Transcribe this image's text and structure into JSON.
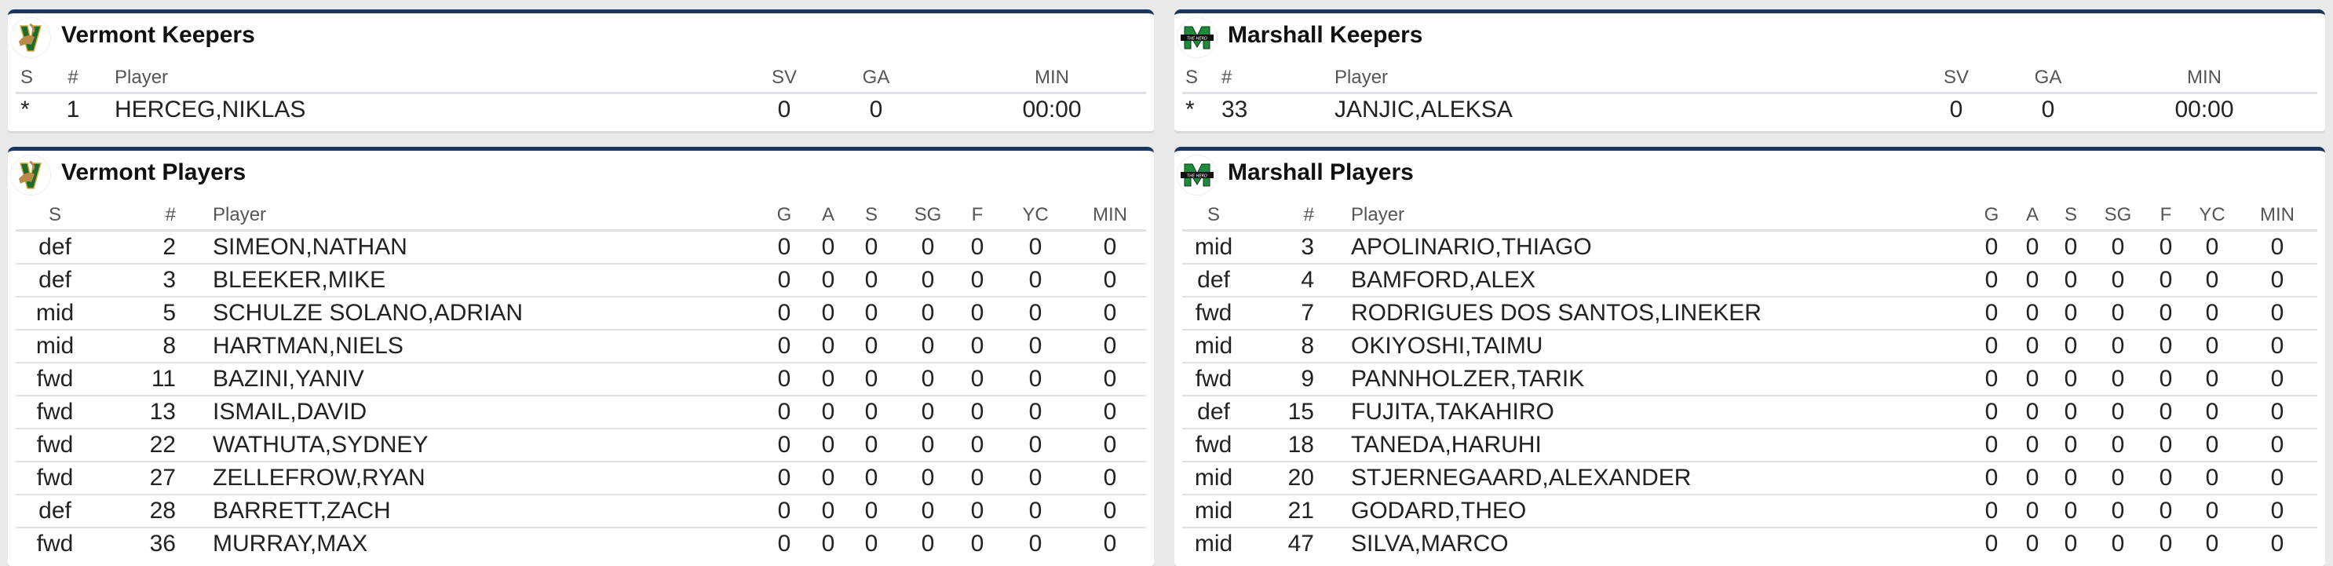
{
  "colors": {
    "header_bar": "#1b365d",
    "vermont_green": "#1f6b2d",
    "vermont_gold": "#d4a93a",
    "marshall_green": "#1e8a3c"
  },
  "panels": [
    {
      "id": "vermont-keepers",
      "title": "Vermont Keepers",
      "logo": "vermont-catamount-logo-icon",
      "columns": [
        "S",
        "#",
        "Player",
        "SV",
        "GA",
        "MIN"
      ],
      "rows": [
        [
          "*",
          "1",
          "HERCEG,NIKLAS",
          "0",
          "0",
          "00:00"
        ]
      ]
    },
    {
      "id": "marshall-keepers",
      "title": "Marshall Keepers",
      "logo": "marshall-herd-logo-icon",
      "columns": [
        "S",
        "#",
        "Player",
        "SV",
        "GA",
        "MIN"
      ],
      "rows": [
        [
          "*",
          "33",
          "JANJIC,ALEKSA",
          "0",
          "0",
          "00:00"
        ]
      ]
    },
    {
      "id": "vermont-players",
      "title": "Vermont Players",
      "logo": "vermont-catamount-logo-icon",
      "columns": [
        "S",
        "#",
        "Player",
        "G",
        "A",
        "S",
        "SG",
        "F",
        "YC",
        "MIN"
      ],
      "rows": [
        [
          "def",
          "2",
          "SIMEON,NATHAN",
          "0",
          "0",
          "0",
          "0",
          "0",
          "0",
          "0"
        ],
        [
          "def",
          "3",
          "BLEEKER,MIKE",
          "0",
          "0",
          "0",
          "0",
          "0",
          "0",
          "0"
        ],
        [
          "mid",
          "5",
          "SCHULZE SOLANO,ADRIAN",
          "0",
          "0",
          "0",
          "0",
          "0",
          "0",
          "0"
        ],
        [
          "mid",
          "8",
          "HARTMAN,NIELS",
          "0",
          "0",
          "0",
          "0",
          "0",
          "0",
          "0"
        ],
        [
          "fwd",
          "11",
          "BAZINI,YANIV",
          "0",
          "0",
          "0",
          "0",
          "0",
          "0",
          "0"
        ],
        [
          "fwd",
          "13",
          "ISMAIL,DAVID",
          "0",
          "0",
          "0",
          "0",
          "0",
          "0",
          "0"
        ],
        [
          "fwd",
          "22",
          "WATHUTA,SYDNEY",
          "0",
          "0",
          "0",
          "0",
          "0",
          "0",
          "0"
        ],
        [
          "fwd",
          "27",
          "ZELLEFROW,RYAN",
          "0",
          "0",
          "0",
          "0",
          "0",
          "0",
          "0"
        ],
        [
          "def",
          "28",
          "BARRETT,ZACH",
          "0",
          "0",
          "0",
          "0",
          "0",
          "0",
          "0"
        ],
        [
          "fwd",
          "36",
          "MURRAY,MAX",
          "0",
          "0",
          "0",
          "0",
          "0",
          "0",
          "0"
        ]
      ]
    },
    {
      "id": "marshall-players",
      "title": "Marshall Players",
      "logo": "marshall-herd-logo-icon",
      "columns": [
        "S",
        "#",
        "Player",
        "G",
        "A",
        "S",
        "SG",
        "F",
        "YC",
        "MIN"
      ],
      "rows": [
        [
          "mid",
          "3",
          "APOLINARIO,THIAGO",
          "0",
          "0",
          "0",
          "0",
          "0",
          "0",
          "0"
        ],
        [
          "def",
          "4",
          "BAMFORD,ALEX",
          "0",
          "0",
          "0",
          "0",
          "0",
          "0",
          "0"
        ],
        [
          "fwd",
          "7",
          "RODRIGUES DOS SANTOS,LINEKER",
          "0",
          "0",
          "0",
          "0",
          "0",
          "0",
          "0"
        ],
        [
          "mid",
          "8",
          "OKIYOSHI,TAIMU",
          "0",
          "0",
          "0",
          "0",
          "0",
          "0",
          "0"
        ],
        [
          "fwd",
          "9",
          "PANNHOLZER,TARIK",
          "0",
          "0",
          "0",
          "0",
          "0",
          "0",
          "0"
        ],
        [
          "def",
          "15",
          "FUJITA,TAKAHIRO",
          "0",
          "0",
          "0",
          "0",
          "0",
          "0",
          "0"
        ],
        [
          "fwd",
          "18",
          "TANEDA,HARUHI",
          "0",
          "0",
          "0",
          "0",
          "0",
          "0",
          "0"
        ],
        [
          "mid",
          "20",
          "STJERNEGAARD,ALEXANDER",
          "0",
          "0",
          "0",
          "0",
          "0",
          "0",
          "0"
        ],
        [
          "mid",
          "21",
          "GODARD,THEO",
          "0",
          "0",
          "0",
          "0",
          "0",
          "0",
          "0"
        ],
        [
          "mid",
          "47",
          "SILVA,MARCO",
          "0",
          "0",
          "0",
          "0",
          "0",
          "0",
          "0"
        ]
      ]
    }
  ]
}
